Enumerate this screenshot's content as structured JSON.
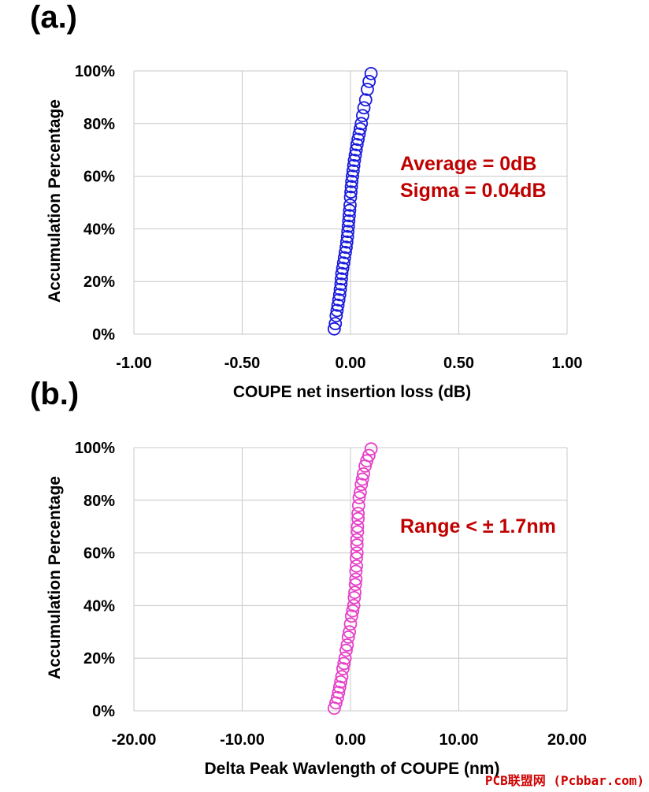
{
  "panels": [
    {
      "label": "(a.)"
    },
    {
      "label": "(b.)"
    }
  ],
  "watermark": "PCB联盟网 (Pcbbar.com)",
  "chart_data": [
    {
      "type": "scatter",
      "title": "",
      "xlabel": "COUPE net insertion loss (dB)",
      "ylabel": "Accumulation Percentage",
      "xlim": [
        -1.0,
        1.0
      ],
      "ylim": [
        0,
        1
      ],
      "xticks": [
        "-1.00",
        "-0.50",
        "0.00",
        "0.50",
        "1.00"
      ],
      "yticks": [
        "0%",
        "20%",
        "40%",
        "60%",
        "80%",
        "100%"
      ],
      "grid": true,
      "marker": "open-circle",
      "color": "#1a1adc",
      "annotations": [
        {
          "text": "Average = 0dB",
          "color": "#c00000"
        },
        {
          "text": "Sigma = 0.04dB",
          "color": "#c00000"
        }
      ],
      "series": [
        {
          "x": [
            -0.075,
            -0.07,
            -0.066,
            -0.062,
            -0.058,
            -0.054,
            -0.05,
            -0.047,
            -0.044,
            -0.042,
            -0.04,
            -0.036,
            -0.032,
            -0.028,
            -0.024,
            -0.02,
            -0.017,
            -0.014,
            -0.012,
            -0.01,
            -0.008,
            -0.006,
            -0.004,
            -0.002,
            0.0,
            0.002,
            0.004,
            0.006,
            0.009,
            0.012,
            0.015,
            0.018,
            0.022,
            0.026,
            0.03,
            0.035,
            0.04,
            0.045,
            0.05,
            0.056,
            0.062,
            0.07,
            0.078,
            0.086,
            0.095
          ],
          "y": [
            0.02,
            0.04,
            0.07,
            0.09,
            0.11,
            0.13,
            0.15,
            0.17,
            0.19,
            0.21,
            0.23,
            0.25,
            0.27,
            0.29,
            0.31,
            0.33,
            0.35,
            0.37,
            0.39,
            0.41,
            0.43,
            0.45,
            0.47,
            0.49,
            0.52,
            0.54,
            0.56,
            0.58,
            0.6,
            0.62,
            0.64,
            0.66,
            0.68,
            0.7,
            0.72,
            0.74,
            0.76,
            0.78,
            0.8,
            0.83,
            0.86,
            0.89,
            0.93,
            0.96,
            0.99
          ]
        }
      ]
    },
    {
      "type": "scatter",
      "title": "",
      "xlabel": "Delta Peak Wavlength of COUPE (nm)",
      "ylabel": "Accumulation Percentage",
      "xlim": [
        -20.0,
        20.0
      ],
      "ylim": [
        0,
        1
      ],
      "xticks": [
        "-20.00",
        "-10.00",
        "0.00",
        "10.00",
        "20.00"
      ],
      "yticks": [
        "0%",
        "20%",
        "40%",
        "60%",
        "80%",
        "100%"
      ],
      "grid": true,
      "marker": "open-circle",
      "color": "#e640c8",
      "annotations": [
        {
          "text": "Range < ± 1.7nm",
          "color": "#c00000"
        }
      ],
      "series": [
        {
          "x": [
            -1.5,
            -1.35,
            -1.2,
            -1.1,
            -1.0,
            -0.9,
            -0.8,
            -0.7,
            -0.6,
            -0.5,
            -0.4,
            -0.3,
            -0.2,
            -0.1,
            0.0,
            0.1,
            0.2,
            0.3,
            0.35,
            0.4,
            0.45,
            0.5,
            0.5,
            0.55,
            0.55,
            0.6,
            0.6,
            0.6,
            0.65,
            0.65,
            0.7,
            0.7,
            0.75,
            0.8,
            0.9,
            1.0,
            1.1,
            1.2,
            1.35,
            1.5,
            1.7,
            1.9
          ],
          "y": [
            0.01,
            0.03,
            0.05,
            0.07,
            0.09,
            0.11,
            0.13,
            0.16,
            0.18,
            0.2,
            0.23,
            0.25,
            0.28,
            0.3,
            0.33,
            0.36,
            0.38,
            0.4,
            0.43,
            0.45,
            0.48,
            0.5,
            0.53,
            0.55,
            0.58,
            0.6,
            0.63,
            0.65,
            0.68,
            0.7,
            0.73,
            0.75,
            0.78,
            0.81,
            0.83,
            0.86,
            0.88,
            0.9,
            0.93,
            0.95,
            0.97,
            0.995
          ]
        }
      ]
    }
  ]
}
